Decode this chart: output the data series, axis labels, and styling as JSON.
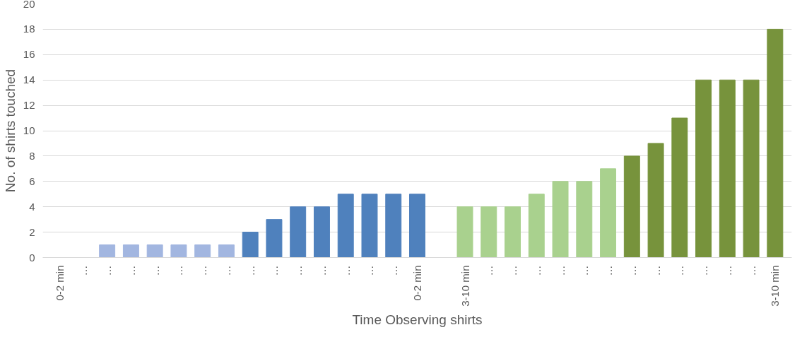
{
  "chart_data": {
    "type": "bar",
    "xlabel": "Time Observing shirts",
    "ylabel": "No. of shirts touched",
    "categories": [
      "0-2 min",
      "…",
      "…",
      "…",
      "…",
      "…",
      "…",
      "…",
      "…",
      "…",
      "…",
      "…",
      "…",
      "…",
      "…",
      "0-2 min",
      null,
      "3-10 min",
      "…",
      "…",
      "…",
      "…",
      "…",
      "…",
      "…",
      "…",
      "…",
      "…",
      "…",
      "…",
      "3-10 min"
    ],
    "values": [
      0,
      0,
      1,
      1,
      1,
      1,
      1,
      1,
      2,
      3,
      4,
      4,
      5,
      5,
      5,
      5,
      null,
      4,
      4,
      4,
      5,
      6,
      6,
      7,
      8,
      9,
      11,
      14,
      14,
      14,
      18
    ],
    "colors": [
      "#a2b6e0",
      "#a2b6e0",
      "#a2b6e0",
      "#a2b6e0",
      "#a2b6e0",
      "#a2b6e0",
      "#a2b6e0",
      "#a2b6e0",
      "#4f81bd",
      "#4f81bd",
      "#4f81bd",
      "#4f81bd",
      "#4f81bd",
      "#4f81bd",
      "#4f81bd",
      "#4f81bd",
      "#4f81bd",
      "#a9d18e",
      "#a9d18e",
      "#a9d18e",
      "#a9d18e",
      "#a9d18e",
      "#a9d18e",
      "#a9d18e",
      "#77933c",
      "#77933c",
      "#77933c",
      "#77933c",
      "#77933c",
      "#77933c",
      "#77933c"
    ],
    "ylim": [
      0,
      20
    ],
    "yticks": [
      0,
      2,
      4,
      6,
      8,
      10,
      12,
      14,
      16,
      18,
      20
    ],
    "grid": "y"
  }
}
